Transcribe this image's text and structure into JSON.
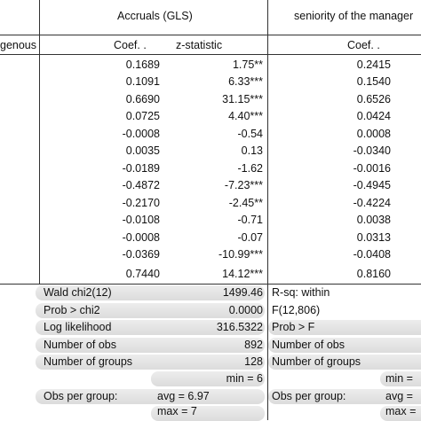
{
  "header": {
    "section_left": "genous",
    "group1_title": "Accruals (GLS)",
    "group2_title": "seniority of the manager",
    "col1": "Coef. .",
    "col2": "z-statistic",
    "col3": "Coef. ."
  },
  "rows": [
    {
      "coef": "0.1689",
      "z": "1.75**",
      "coef2": "0.2415"
    },
    {
      "coef": "0.1091",
      "z": "6.33***",
      "coef2": "0.1540"
    },
    {
      "coef": "0.6690",
      "z": "31.15***",
      "coef2": "0.6526"
    },
    {
      "coef": "0.0725",
      "z": "4.40***",
      "coef2": "0.0424"
    },
    {
      "coef": "-0.0008",
      "z": "-0.54",
      "coef2": "0.0008"
    },
    {
      "coef": "0.0035",
      "z": "0.13",
      "coef2": "-0.0340"
    },
    {
      "coef": "-0.0189",
      "z": "-1.62",
      "coef2": "-0.0016"
    },
    {
      "coef": "-0.4872",
      "z": "-7.23***",
      "coef2": "-0.4945"
    },
    {
      "coef": "-0.2170",
      "z": "-2.45**",
      "coef2": "-0.4224"
    },
    {
      "coef": "-0.0108",
      "z": "-0.71",
      "coef2": "0.0038"
    },
    {
      "coef": "-0.0008",
      "z": "-0.07",
      "coef2": "0.0313"
    },
    {
      "coef": "-0.0369",
      "z": "-10.99***",
      "coef2": "-0.0408"
    },
    {
      "coef": "0.7440",
      "z": "14.12***",
      "coef2": "0.8160"
    }
  ],
  "stats": {
    "wald_label": "Wald chi2(12)",
    "wald_value": "1499.46",
    "prob_label": "Prob > chi2",
    "prob_value": "0.0000",
    "loglik_label": "Log likelihood",
    "loglik_value": "316.5322",
    "nobs_label": "Number of obs",
    "nobs_value": "892",
    "ngroups_label": "Number of groups",
    "ngroups_value": "128",
    "obs_group_label": "Obs per group:",
    "min_label": "min = 6",
    "avg_label": "avg = 6.97",
    "max_label": "max = 7"
  },
  "stats2": {
    "rsq_label": "R-sq: within",
    "f_label": "F(12,806)",
    "probf_label": "Prob > F",
    "nobs_label": "Number of obs",
    "ngroups_label": "Number of groups",
    "obs_group_label": "Obs per group:",
    "min_label": "min =",
    "avg_label": "avg =",
    "max_label": "max ="
  }
}
